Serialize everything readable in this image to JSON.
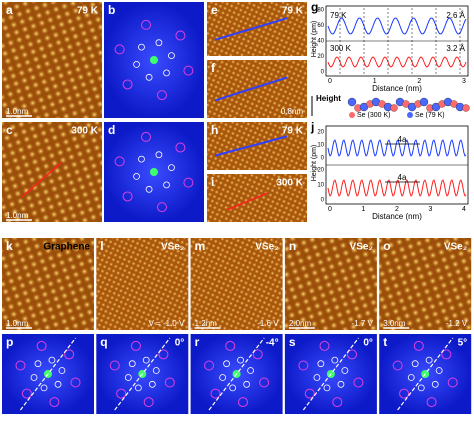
{
  "panels": [
    {
      "label": "a",
      "texts": [
        "79 K",
        "1.0nm"
      ]
    },
    {
      "label": "b"
    },
    {
      "label": "e",
      "texts": [
        "79 K"
      ]
    },
    {
      "label": "f",
      "texts": [
        "0.8nm"
      ]
    },
    {
      "label": "c",
      "texts": [
        "300 K",
        "1.0nm"
      ]
    },
    {
      "label": "d"
    },
    {
      "label": "h",
      "texts": [
        "79 K"
      ]
    },
    {
      "label": "i",
      "texts": [
        "300 K"
      ]
    },
    {
      "label": "k",
      "texts": [
        "Graphene",
        "1.0nm"
      ]
    },
    {
      "label": "l",
      "texts": [
        "VSe₂",
        "V = -1.0 V"
      ]
    },
    {
      "label": "m",
      "texts": [
        "VSe₂",
        "1.2nm",
        "-1.6 V"
      ]
    },
    {
      "label": "n",
      "texts": [
        "VSe₂",
        "2.0nm",
        "-1.7 V"
      ]
    },
    {
      "label": "o",
      "texts": [
        "VSe₂",
        "3.0nm",
        "-1.2 V"
      ]
    },
    {
      "label": "p"
    },
    {
      "label": "q",
      "texts": [
        "0°"
      ]
    },
    {
      "label": "r",
      "texts": [
        "-4°"
      ]
    },
    {
      "label": "s",
      "texts": [
        "0°"
      ]
    },
    {
      "label": "t",
      "texts": [
        "5°"
      ]
    }
  ],
  "graph_g": {
    "label": "g",
    "y_label": "Height (pm)",
    "x_label": "Distance (nm)",
    "x_ticks": [
      "0",
      "1",
      "2",
      "3"
    ],
    "y_ticks": [
      "80",
      "60",
      "40",
      "20",
      "0"
    ],
    "annotations": [
      "79 K",
      "2.6 Å",
      "300 K",
      "3.2 Å"
    ]
  },
  "model": {
    "axis_label": "Height",
    "legend": [
      "Se (300 K)",
      "Se (79 K)"
    ]
  },
  "graph_j": {
    "label": "j",
    "y_label": "Height (pm)",
    "x_label": "Distance (nm)",
    "x_ticks": [
      "0",
      "1",
      "2",
      "3",
      "4"
    ],
    "y_ticks_top": [
      "20",
      "10",
      "0"
    ],
    "y_ticks_bottom": [
      "20",
      "10",
      "0"
    ],
    "annotations": [
      "4a",
      "4a"
    ]
  }
}
